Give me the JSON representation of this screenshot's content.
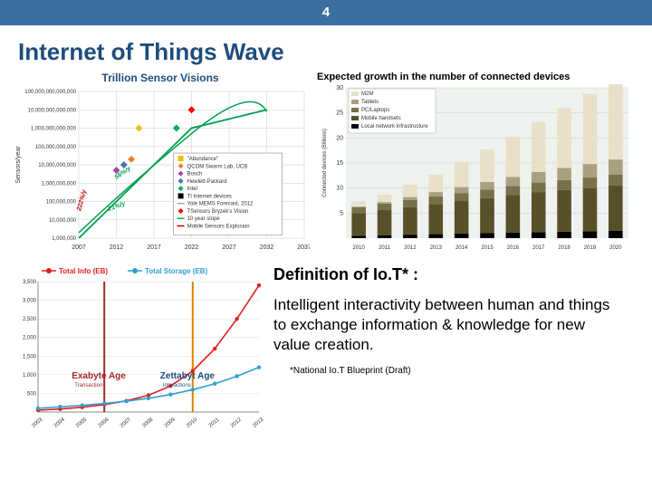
{
  "header": {
    "page_num": "4"
  },
  "title": "Internet of Things Wave",
  "chart1": {
    "title": "Trillion Sensor Visions",
    "type": "line-scatter",
    "ylabel": "Sensors/year",
    "ytick_labels": [
      "1,000,000",
      "10,000,000",
      "100,000,000",
      "1,000,000,000",
      "10,000,000,000",
      "100,000,000,000",
      "1,000,000,000,000",
      "10,000,000,000,000",
      "100,000,000,000,000"
    ],
    "xtick_labels": [
      "2007",
      "2012",
      "2017",
      "2022",
      "2027",
      "2032",
      "2037"
    ],
    "annotations": [
      "56%/y",
      "21%/y",
      "222%/y"
    ],
    "legend": [
      {
        "label": "\"Abundance\"",
        "color": "#f0c000",
        "marker": "square"
      },
      {
        "label": "QCOM Swarm Lab, UCB",
        "color": "#ed7d31",
        "marker": "diamond"
      },
      {
        "label": "Bosch",
        "color": "#a349a4",
        "marker": "diamond"
      },
      {
        "label": "Hewlett-Packard",
        "color": "#4472c4",
        "marker": "diamond"
      },
      {
        "label": "Intel",
        "color": "#00b050",
        "marker": "diamond"
      },
      {
        "label": "TI Internet devices",
        "color": "#000000",
        "marker": "square"
      },
      {
        "label": "Yole MEMS Forecast, 2012",
        "color": "#a5a5a5",
        "marker": "line"
      },
      {
        "label": "TSensors Bryzek's Vision",
        "color": "#ff0000",
        "marker": "diamond"
      },
      {
        "label": "10 year slope",
        "color": "#00b050",
        "marker": "line"
      },
      {
        "label": "Mobile Sensors Explosion",
        "color": "#c00000",
        "marker": "line"
      }
    ],
    "line_points": [
      [
        2007,
        1000000.0
      ],
      [
        2012,
        100000000.0
      ],
      [
        2017,
        10000000000.0
      ],
      [
        2022,
        1000000000000.0
      ],
      [
        2032,
        10000000000000.0
      ]
    ],
    "line_color": "#00a050",
    "scatter": [
      {
        "x": 2012,
        "y": 5000000000.0,
        "color": "#a349a4"
      },
      {
        "x": 2013,
        "y": 10000000000.0,
        "color": "#4472c4"
      },
      {
        "x": 2014,
        "y": 20000000000.0,
        "color": "#ed7d31"
      },
      {
        "x": 2015,
        "y": 1000000000000.0,
        "color": "#f0c000"
      },
      {
        "x": 2020,
        "y": 1000000000000.0,
        "color": "#00b050"
      },
      {
        "x": 2022,
        "y": 10000000000000.0,
        "color": "#ff0000"
      }
    ]
  },
  "chart2": {
    "title": "Expected growth in the number of connected devices",
    "type": "stacked-bar",
    "ylabel": "Connected devices (Billions)",
    "xtick_labels": [
      "2010",
      "2011",
      "2012",
      "2013",
      "2014",
      "2015",
      "2016",
      "2017",
      "2018",
      "2019",
      "2020"
    ],
    "ytick_labels": [
      "5",
      "10",
      "15",
      "20",
      "25",
      "30"
    ],
    "ylim": [
      0,
      30
    ],
    "legend": [
      {
        "label": "M2M",
        "color": "#e8e0c8"
      },
      {
        "label": "Tablets",
        "color": "#a8a080"
      },
      {
        "label": "PC/Laptops",
        "color": "#787048"
      },
      {
        "label": "Mobile handsets",
        "color": "#585028"
      },
      {
        "label": "Local network infrastructure",
        "color": "#000000"
      }
    ],
    "series": {
      "lni": [
        0.5,
        0.6,
        0.7,
        0.8,
        0.9,
        1.0,
        1.1,
        1.2,
        1.3,
        1.4,
        1.5
      ],
      "mobile": [
        4.5,
        5.0,
        5.5,
        6.0,
        6.5,
        7.0,
        7.5,
        8.0,
        8.3,
        8.6,
        9.0
      ],
      "pc": [
        1.2,
        1.3,
        1.4,
        1.5,
        1.6,
        1.7,
        1.8,
        1.9,
        2.0,
        2.1,
        2.2
      ],
      "tablets": [
        0.1,
        0.3,
        0.6,
        0.9,
        1.2,
        1.5,
        1.8,
        2.1,
        2.4,
        2.7,
        3.0
      ],
      "m2m": [
        1.0,
        1.5,
        2.5,
        3.5,
        5.0,
        6.5,
        8.0,
        10.0,
        12.0,
        14.0,
        15.0
      ]
    },
    "bg_color": "#eef2ee",
    "grid_color": "#cccccc"
  },
  "chart3": {
    "type": "line",
    "ylabel_left": "",
    "legend": [
      {
        "label": "Total Info (EB)",
        "color": "#e02020"
      },
      {
        "label": "Total Storage (EB)",
        "color": "#30a0d0"
      }
    ],
    "annotations": [
      {
        "text": "Exabyte Age",
        "sub": "Transactions",
        "x": 2006,
        "color": "#a52a2a"
      },
      {
        "text": "Zettabyt Age",
        "sub": "Interactions",
        "x": 2010,
        "color": "#1e4d7b"
      }
    ],
    "xtick_labels": [
      "2003",
      "2004",
      "2005",
      "2006",
      "2007",
      "2008",
      "2009",
      "2010",
      "2011",
      "2012",
      "2013"
    ],
    "ytick_labels": [
      "500",
      "1,000",
      "1,500",
      "2,000",
      "2,500",
      "3,000",
      "3,500"
    ],
    "ylim": [
      0,
      3500
    ],
    "info_points": [
      [
        2003,
        50
      ],
      [
        2004,
        80
      ],
      [
        2005,
        130
      ],
      [
        2006,
        200
      ],
      [
        2007,
        300
      ],
      [
        2008,
        450
      ],
      [
        2009,
        700
      ],
      [
        2010,
        1100
      ],
      [
        2011,
        1700
      ],
      [
        2012,
        2500
      ],
      [
        2013,
        3400
      ]
    ],
    "storage_points": [
      [
        2003,
        100
      ],
      [
        2004,
        140
      ],
      [
        2005,
        180
      ],
      [
        2006,
        230
      ],
      [
        2007,
        290
      ],
      [
        2008,
        370
      ],
      [
        2009,
        470
      ],
      [
        2010,
        600
      ],
      [
        2011,
        760
      ],
      [
        2012,
        960
      ],
      [
        2013,
        1200
      ]
    ],
    "vlines": [
      {
        "x": 2006,
        "color": "#a52a2a"
      },
      {
        "x": 2010,
        "color": "#e08000"
      }
    ]
  },
  "definition": {
    "title": "Definition of Io.T* :",
    "text": "Intelligent interactivity between human and things to exchange information & knowledge for new value creation.",
    "footnote": "*National Io.T Blueprint (Draft)"
  }
}
